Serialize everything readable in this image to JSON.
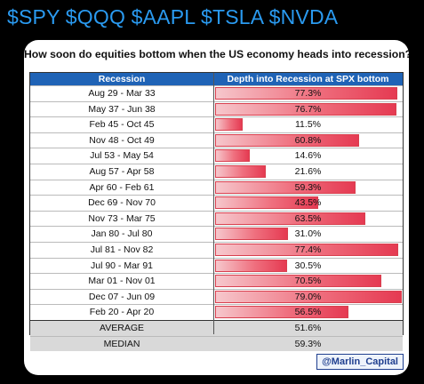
{
  "header": {
    "tickers": "$SPY $QQQ $AAPL $TSLA $NVDA"
  },
  "chart_data": {
    "type": "bar",
    "title": "How soon do equities bottom when the US economy heads into recession?",
    "column_headers": [
      "Recession",
      "Depth into Recession at SPX bottom"
    ],
    "categories": [
      "Aug 29 - Mar 33",
      "May 37 - Jun 38",
      "Feb 45 - Oct 45",
      "Nov 48 - Oct 49",
      "Jul 53 - May 54",
      "Aug 57 - Apr 58",
      "Apr 60 - Feb 61",
      "Dec 69 - Nov 70",
      "Nov 73 - Mar 75",
      "Jan 80 - Jul 80",
      "Jul 81 - Nov 82",
      "Jul 90 - Mar 91",
      "Mar 01 - Nov 01",
      "Dec 07 - Jun 09",
      "Feb 20 - Apr 20"
    ],
    "values": [
      77.3,
      76.7,
      11.5,
      60.8,
      14.6,
      21.6,
      59.3,
      43.5,
      63.5,
      31.0,
      77.4,
      30.5,
      70.5,
      79.0,
      56.5
    ],
    "value_labels": [
      "77.3%",
      "76.7%",
      "11.5%",
      "60.8%",
      "14.6%",
      "21.6%",
      "59.3%",
      "43.5%",
      "63.5%",
      "31.0%",
      "77.4%",
      "30.5%",
      "70.5%",
      "79.0%",
      "56.5%"
    ],
    "xlim": [
      0,
      79.0
    ],
    "summary": [
      {
        "label": "AVERAGE",
        "value": "51.6%"
      },
      {
        "label": "MEDIAN",
        "value": "59.3%"
      }
    ],
    "bar_color": "#e53a52",
    "header_color": "#1f63b6"
  },
  "credit": "@Marlin_Capital"
}
